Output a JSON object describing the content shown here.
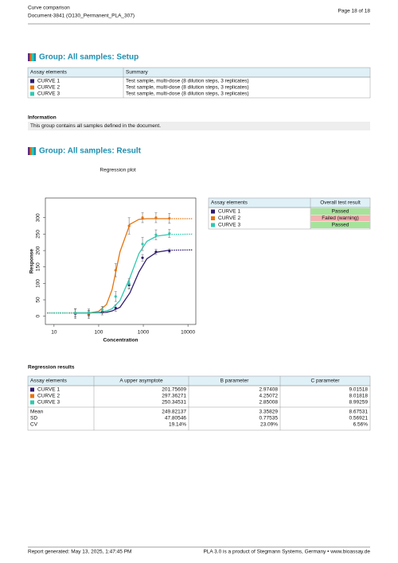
{
  "header": {
    "title": "Curve comparison",
    "document": "Document-3841 (O130_Permanent_PLA_307)",
    "page": "Page 18 of 18"
  },
  "setup": {
    "title": "Group: All samples: Setup",
    "columns": [
      "Assay elements",
      "Summary"
    ],
    "rows": [
      {
        "name": "CURVE 1",
        "color": "#2e1a6e",
        "summary": "Test sample, multi-dose (8 dilution steps, 3 replicates)"
      },
      {
        "name": "CURVE 2",
        "color": "#e8730c",
        "summary": "Test sample, multi-dose (8 dilution steps, 3 replicates)"
      },
      {
        "name": "CURVE 3",
        "color": "#2ec9b0",
        "summary": "Test sample, multi-dose (8 dilution steps, 3 replicates)"
      }
    ]
  },
  "information": {
    "title": "Information",
    "text": "This group contains all samples defined in the document."
  },
  "result": {
    "title": "Group: All samples: Result"
  },
  "chart_data": {
    "type": "line",
    "title": "Regression plot",
    "x_label": "Concentration",
    "y_label": "Response",
    "log_x": true,
    "xlim": [
      6.4,
      15000
    ],
    "xticks": [
      10,
      100,
      1000,
      10000
    ],
    "ylim": [
      -25,
      360
    ],
    "yticks": [
      0,
      50,
      100,
      150,
      200,
      250,
      300
    ],
    "x": [
      30,
      60,
      120,
      240,
      480,
      960,
      1920,
      3840
    ],
    "fit_x": [
      7,
      30,
      60,
      100,
      150,
      200,
      300,
      500,
      800,
      1200,
      2000,
      3840,
      13000
    ],
    "series": [
      {
        "color": "#2e1a6e",
        "values": [
          8,
          5,
          12,
          25,
          95,
          178,
          196,
          199
        ],
        "errors": [
          15,
          12,
          8,
          10,
          12,
          10,
          8,
          6
        ],
        "fit_values": [
          10,
          10,
          10,
          11,
          12,
          16,
          27,
          71,
          135,
          175,
          195,
          201,
          202
        ]
      },
      {
        "color": "#e8730c",
        "values": [
          10,
          8,
          20,
          140,
          275,
          300,
          300,
          298
        ],
        "errors": [
          12,
          10,
          10,
          20,
          25,
          15,
          15,
          15
        ],
        "fit_values": [
          10,
          10,
          10,
          15,
          36,
          81,
          196,
          280,
          295,
          297,
          297,
          297,
          297
        ]
      },
      {
        "color": "#2ec9b0",
        "values": [
          10,
          12,
          20,
          60,
          100,
          220,
          248,
          252
        ],
        "errors": [
          12,
          10,
          10,
          15,
          15,
          20,
          15,
          12
        ],
        "fit_values": [
          10,
          10,
          10,
          12,
          16,
          23,
          48,
          117,
          191,
          228,
          244,
          249,
          250
        ]
      }
    ]
  },
  "test_table": {
    "columns": [
      "Assay elements",
      "Overall test result"
    ],
    "rows": [
      {
        "name": "CURVE 1",
        "color": "#2e1a6e",
        "result": "Passed",
        "result_color": "#a6e39a"
      },
      {
        "name": "CURVE 2",
        "color": "#e8730c",
        "result": "Failed (warning)",
        "result_color": "#f2b3b3"
      },
      {
        "name": "CURVE 3",
        "color": "#2ec9b0",
        "result": "Passed",
        "result_color": "#a6e39a"
      }
    ]
  },
  "regression_results": {
    "title": "Regression results",
    "columns": [
      "Assay elements",
      "A upper asymptote",
      "B parameter",
      "C parameter"
    ],
    "rows": [
      {
        "name": "CURVE 1",
        "color": "#2e1a6e",
        "cells": [
          "201.75609",
          "2.97408",
          "9.01518"
        ]
      },
      {
        "name": "CURVE 2",
        "color": "#e8730c",
        "cells": [
          "297.36271",
          "4.25072",
          "8.01818"
        ]
      },
      {
        "name": "CURVE 3",
        "color": "#2ec9b0",
        "cells": [
          "250.34531",
          "2.85008",
          "8.99259"
        ]
      }
    ],
    "stats": [
      {
        "name": "Mean",
        "cells": [
          "249.82137",
          "3.35829",
          "8.67531"
        ]
      },
      {
        "name": "SD",
        "cells": [
          "47.80546",
          "0.77535",
          "0.56921"
        ]
      },
      {
        "name": "CV",
        "cells": [
          "19.14%",
          "23.09%",
          "6.56%"
        ]
      }
    ]
  },
  "footer": {
    "generated": "Report generated: May 13, 2025, 1:47:45 PM",
    "product": "PLA 3.0 is a product of Stegmann Systems, Germany • www.bioassay.de"
  }
}
